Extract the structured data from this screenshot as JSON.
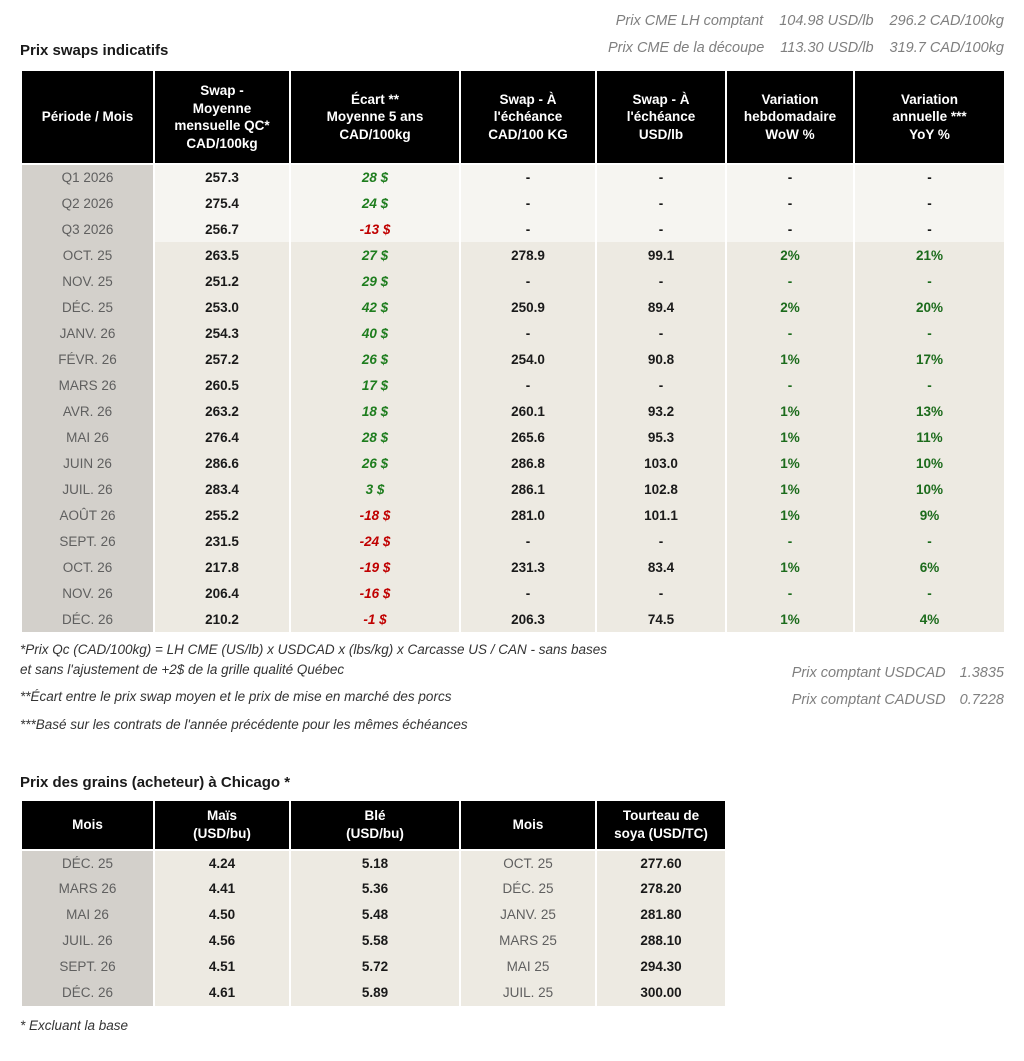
{
  "colors": {
    "header-bg": "#000000",
    "header-text": "#ffffff",
    "period-bg": "#d3d0cb",
    "period-text": "#5f5f5f",
    "quarter-bg": "#f6f5f1",
    "month-bg": "#edeae2",
    "positive-green": "#1e7d1e",
    "negative-red": "#c00000",
    "pct-green": "#1c6b1c",
    "muted-italic": "#7f7f7f"
  },
  "top_right": {
    "line1": {
      "label": "Prix CME LH comptant",
      "usd": "104.98 USD/lb",
      "cad": "296.2 CAD/100kg"
    },
    "line2": {
      "label": "Prix CME de la découpe",
      "usd": "113.30 USD/lb",
      "cad": "319.7 CAD/100kg"
    }
  },
  "swaps": {
    "title": "Prix swaps indicatifs",
    "headers": [
      "Période / Mois",
      "Swap -\nMoyenne\nmensuelle QC*\nCAD/100kg",
      "Écart **\nMoyenne 5 ans\nCAD/100kg",
      "Swap - À\nl'échéance\nCAD/100 KG",
      "Swap - À\nl'échéance\nUSD/lb",
      "Variation\nhebdomadaire\nWoW %",
      "Variation\nannuelle ***\nYoY %"
    ],
    "rows": [
      {
        "type": "quarter",
        "period": "Q1 2026",
        "swap_moy": "257.3",
        "ecart": "28 $",
        "swap_cad": "-",
        "swap_usd": "-",
        "wow": "-",
        "yoy": "-"
      },
      {
        "type": "quarter",
        "period": "Q2 2026",
        "swap_moy": "275.4",
        "ecart": "24 $",
        "swap_cad": "-",
        "swap_usd": "-",
        "wow": "-",
        "yoy": "-"
      },
      {
        "type": "quarter",
        "period": "Q3 2026",
        "swap_moy": "256.7",
        "ecart": "-13 $",
        "swap_cad": "-",
        "swap_usd": "-",
        "wow": "-",
        "yoy": "-"
      },
      {
        "type": "month",
        "period": "OCT. 25",
        "swap_moy": "263.5",
        "ecart": "27 $",
        "swap_cad": "278.9",
        "swap_usd": "99.1",
        "wow": "2%",
        "yoy": "21%"
      },
      {
        "type": "month",
        "period": "NOV. 25",
        "swap_moy": "251.2",
        "ecart": "29 $",
        "swap_cad": "-",
        "swap_usd": "-",
        "wow": "-",
        "yoy": "-"
      },
      {
        "type": "month",
        "period": "DÉC. 25",
        "swap_moy": "253.0",
        "ecart": "42 $",
        "swap_cad": "250.9",
        "swap_usd": "89.4",
        "wow": "2%",
        "yoy": "20%"
      },
      {
        "type": "month",
        "period": "JANV. 26",
        "swap_moy": "254.3",
        "ecart": "40 $",
        "swap_cad": "-",
        "swap_usd": "-",
        "wow": "-",
        "yoy": "-"
      },
      {
        "type": "month",
        "period": "FÉVR. 26",
        "swap_moy": "257.2",
        "ecart": "26 $",
        "swap_cad": "254.0",
        "swap_usd": "90.8",
        "wow": "1%",
        "yoy": "17%"
      },
      {
        "type": "month",
        "period": "MARS 26",
        "swap_moy": "260.5",
        "ecart": "17 $",
        "swap_cad": "-",
        "swap_usd": "-",
        "wow": "-",
        "yoy": "-"
      },
      {
        "type": "month",
        "period": "AVR. 26",
        "swap_moy": "263.2",
        "ecart": "18 $",
        "swap_cad": "260.1",
        "swap_usd": "93.2",
        "wow": "1%",
        "yoy": "13%"
      },
      {
        "type": "month",
        "period": "MAI 26",
        "swap_moy": "276.4",
        "ecart": "28 $",
        "swap_cad": "265.6",
        "swap_usd": "95.3",
        "wow": "1%",
        "yoy": "11%"
      },
      {
        "type": "month",
        "period": "JUIN 26",
        "swap_moy": "286.6",
        "ecart": "26 $",
        "swap_cad": "286.8",
        "swap_usd": "103.0",
        "wow": "1%",
        "yoy": "10%"
      },
      {
        "type": "month",
        "period": "JUIL. 26",
        "swap_moy": "283.4",
        "ecart": "3 $",
        "swap_cad": "286.1",
        "swap_usd": "102.8",
        "wow": "1%",
        "yoy": "10%"
      },
      {
        "type": "month",
        "period": "AOÛT 26",
        "swap_moy": "255.2",
        "ecart": "-18 $",
        "swap_cad": "281.0",
        "swap_usd": "101.1",
        "wow": "1%",
        "yoy": "9%"
      },
      {
        "type": "month",
        "period": "SEPT. 26",
        "swap_moy": "231.5",
        "ecart": "-24 $",
        "swap_cad": "-",
        "swap_usd": "-",
        "wow": "-",
        "yoy": "-"
      },
      {
        "type": "month",
        "period": "OCT. 26",
        "swap_moy": "217.8",
        "ecart": "-19 $",
        "swap_cad": "231.3",
        "swap_usd": "83.4",
        "wow": "1%",
        "yoy": "6%"
      },
      {
        "type": "month",
        "period": "NOV. 26",
        "swap_moy": "206.4",
        "ecart": "-16 $",
        "swap_cad": "-",
        "swap_usd": "-",
        "wow": "-",
        "yoy": "-"
      },
      {
        "type": "month",
        "period": "DÉC. 26",
        "swap_moy": "210.2",
        "ecart": "-1 $",
        "swap_cad": "206.3",
        "swap_usd": "74.5",
        "wow": "1%",
        "yoy": "4%"
      }
    ]
  },
  "footnotes": {
    "note1": "*Prix Qc (CAD/100kg) = LH CME (US/lb) x USDCAD x (lbs/kg) x Carcasse US / CAN - sans bases\net sans l'ajustement de +2$ de la grille qualité Québec",
    "note2": "**Écart entre le prix swap moyen et le prix de mise en marché des porcs",
    "note3": "***Basé sur les contrats de l'année précédente pour les mêmes échéances"
  },
  "spot": {
    "usdcad": {
      "label": "Prix comptant USDCAD",
      "value": "1.3835"
    },
    "cadusd": {
      "label": "Prix comptant CADUSD",
      "value": "0.7228"
    }
  },
  "grains": {
    "title": "Prix des grains (acheteur) à Chicago *",
    "headers": [
      "Mois",
      "Maïs\n(USD/bu)",
      "Blé\n(USD/bu)",
      "Mois",
      "Tourteau de\nsoya (USD/TC)"
    ],
    "rows": [
      {
        "mois1": "DÉC. 25",
        "mais": "4.24",
        "ble": "5.18",
        "mois2": "OCT. 25",
        "tourteau": "277.60"
      },
      {
        "mois1": "MARS 26",
        "mais": "4.41",
        "ble": "5.36",
        "mois2": "DÉC. 25",
        "tourteau": "278.20"
      },
      {
        "mois1": "MAI 26",
        "mais": "4.50",
        "ble": "5.48",
        "mois2": "JANV. 25",
        "tourteau": "281.80"
      },
      {
        "mois1": "JUIL. 26",
        "mais": "4.56",
        "ble": "5.58",
        "mois2": "MARS 25",
        "tourteau": "288.10"
      },
      {
        "mois1": "SEPT. 26",
        "mais": "4.51",
        "ble": "5.72",
        "mois2": "MAI 25",
        "tourteau": "294.30"
      },
      {
        "mois1": "DÉC. 26",
        "mais": "4.61",
        "ble": "5.89",
        "mois2": "JUIL. 25",
        "tourteau": "300.00"
      }
    ],
    "footnote": "* Excluant la base"
  }
}
